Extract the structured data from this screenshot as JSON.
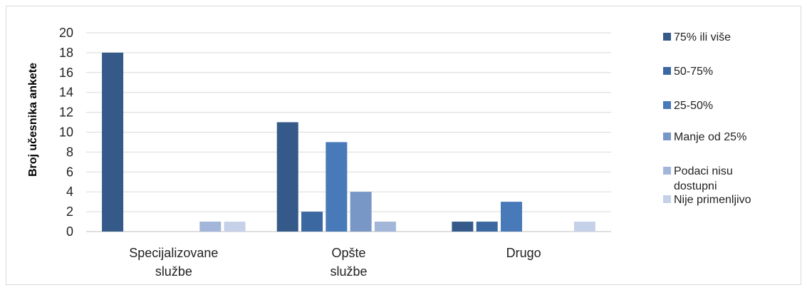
{
  "chart_data": {
    "type": "bar",
    "title": "",
    "xlabel": "",
    "ylabel": "Broj učesnika ankete",
    "ylim": [
      0,
      20
    ],
    "yticks": [
      0,
      2,
      4,
      6,
      8,
      10,
      12,
      14,
      16,
      18,
      20
    ],
    "categories": [
      [
        "Specijalizovane",
        "službe"
      ],
      [
        "Opšte",
        "službe"
      ],
      [
        "Drugo"
      ]
    ],
    "grid": true,
    "legend_position": "right",
    "series": [
      {
        "name": "75% ili više",
        "color": "#355a89",
        "values": [
          18,
          11,
          1
        ]
      },
      {
        "name": "50-75%",
        "color": "#3b68a1",
        "values": [
          0,
          2,
          1
        ]
      },
      {
        "name": "25-50%",
        "color": "#4879b8",
        "values": [
          0,
          9,
          3
        ]
      },
      {
        "name": "Manje od 25%",
        "color": "#7896c6",
        "values": [
          0,
          4,
          0
        ]
      },
      {
        "name": "Podaci nisu dostupni",
        "color": "#a2b6d9",
        "values": [
          1,
          1,
          0
        ]
      },
      {
        "name": "Nije primenljivo",
        "color": "#c5d1e8",
        "values": [
          1,
          0,
          1
        ]
      }
    ],
    "legend_display": [
      [
        "75% ili više"
      ],
      [
        "50-75%"
      ],
      [
        "25-50%"
      ],
      [
        "Manje od 25%"
      ],
      [
        "Podaci nisu",
        "dostupni"
      ],
      [
        "Nije primenljivo"
      ]
    ]
  }
}
